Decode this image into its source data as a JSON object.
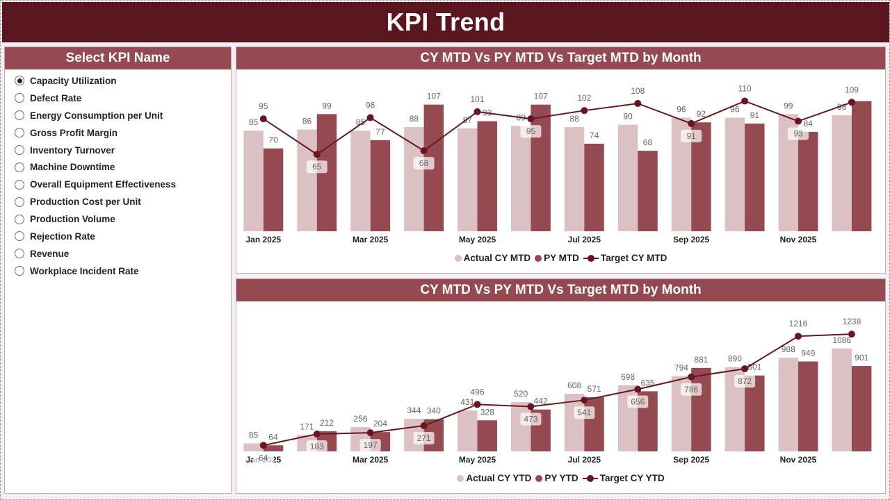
{
  "page": {
    "title": "KPI Trend"
  },
  "colors": {
    "banner": "#5a161e",
    "header": "#954a52",
    "actual": "#dcc1c4",
    "py": "#954a52",
    "target": "#6a1621",
    "label": "#666666"
  },
  "slicer": {
    "title": "Select KPI Name",
    "selected_index": 0,
    "items": [
      "Capacity Utilization",
      "Defect Rate",
      "Energy Consumption per Unit",
      "Gross Profit Margin",
      "Inventory Turnover",
      "Machine Downtime",
      "Overall Equipment Effectiveness",
      "Production Cost per Unit",
      "Production Volume",
      "Rejection Rate",
      "Revenue",
      "Workplace Incident Rate"
    ]
  },
  "chart_data": [
    {
      "type": "bar",
      "title": "CY MTD Vs PY MTD Vs Target MTD by Month",
      "categories": [
        "Jan 2025",
        "Feb 2025",
        "Mar 2025",
        "Apr 2025",
        "May 2025",
        "Jun 2025",
        "Jul 2025",
        "Aug 2025",
        "Sep 2025",
        "Oct 2025",
        "Nov 2025",
        "Dec 2025"
      ],
      "x_tick_labels": [
        "Jan 2025",
        "",
        "Mar 2025",
        "",
        "May 2025",
        "",
        "Jul 2025",
        "",
        "Sep 2025",
        "",
        "Nov 2025",
        ""
      ],
      "series": [
        {
          "name": "Actual CY MTD",
          "kind": "bar",
          "values": [
            85,
            86,
            85,
            88,
            87,
            89,
            88,
            90,
            96,
            96,
            99,
            98
          ]
        },
        {
          "name": "PY MTD",
          "kind": "bar",
          "values": [
            70,
            99,
            77,
            107,
            93,
            107,
            74,
            68,
            92,
            91,
            84,
            110
          ],
          "hidden_labels": [
            11
          ]
        },
        {
          "name": "Target CY MTD",
          "kind": "line",
          "values": [
            95,
            65,
            96,
            68,
            101,
            95,
            102,
            108,
            91,
            110,
            93,
            109
          ]
        }
      ],
      "ylim": [
        0,
        125
      ],
      "legend": [
        "Actual CY MTD",
        "PY MTD",
        "Target CY MTD"
      ],
      "legend_position": "bottom",
      "grid": false
    },
    {
      "type": "bar",
      "title": "CY MTD Vs PY MTD Vs Target MTD by Month",
      "categories": [
        "Jan 2025",
        "Feb 2025",
        "Mar 2025",
        "Apr 2025",
        "May 2025",
        "Jun 2025",
        "Jul 2025",
        "Aug 2025",
        "Sep 2025",
        "Oct 2025",
        "Nov 2025",
        "Dec 2025"
      ],
      "x_tick_labels": [
        "Jan 2025",
        "",
        "Mar 2025",
        "",
        "May 2025",
        "",
        "Jul 2025",
        "",
        "Sep 2025",
        "",
        "Nov 2025",
        ""
      ],
      "series": [
        {
          "name": "Actual CY YTD",
          "kind": "bar",
          "values": [
            85,
            171,
            256,
            344,
            431,
            520,
            608,
            698,
            794,
            890,
            988,
            1086
          ]
        },
        {
          "name": "PY YTD",
          "kind": "bar",
          "values": [
            64,
            212,
            204,
            340,
            328,
            442,
            571,
            635,
            881,
            801,
            949,
            901
          ]
        },
        {
          "name": "Target CY YTD",
          "kind": "line",
          "values": [
            64,
            183,
            197,
            271,
            496,
            473,
            541,
            656,
            786,
            872,
            1216,
            1238
          ]
        }
      ],
      "ylim": [
        0,
        1400
      ],
      "legend": [
        "Actual CY YTD",
        "PY YTD",
        "Target CY YTD"
      ],
      "legend_position": "bottom",
      "grid": false
    }
  ]
}
